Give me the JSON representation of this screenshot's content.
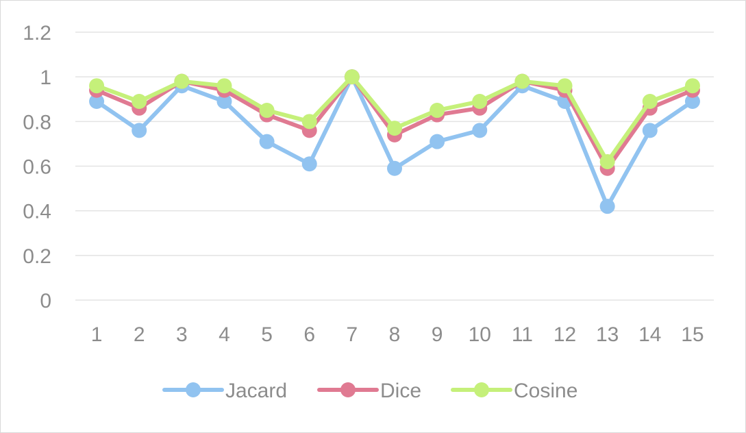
{
  "chart_data": {
    "type": "line",
    "title": "",
    "xlabel": "",
    "ylabel": "",
    "x": [
      "1",
      "2",
      "3",
      "4",
      "5",
      "6",
      "7",
      "8",
      "9",
      "10",
      "11",
      "12",
      "13",
      "14",
      "15"
    ],
    "ylim": [
      0,
      1.2
    ],
    "yticks": [
      "0",
      "0.2",
      "0.4",
      "0.6",
      "0.8",
      "1",
      "1.2"
    ],
    "grid": true,
    "legend_position": "bottom",
    "series": [
      {
        "name": "Jacard",
        "color": "#91c3f0",
        "values": [
          0.89,
          0.76,
          0.96,
          0.89,
          0.71,
          0.61,
          1.0,
          0.59,
          0.71,
          0.76,
          0.96,
          0.89,
          0.42,
          0.76,
          0.89
        ]
      },
      {
        "name": "Dice",
        "color": "#e07a92",
        "values": [
          0.94,
          0.86,
          0.98,
          0.94,
          0.83,
          0.76,
          1.0,
          0.74,
          0.83,
          0.86,
          0.98,
          0.94,
          0.59,
          0.86,
          0.94
        ]
      },
      {
        "name": "Cosine",
        "color": "#c5f07a",
        "values": [
          0.96,
          0.89,
          0.98,
          0.96,
          0.85,
          0.8,
          1.0,
          0.77,
          0.85,
          0.89,
          0.98,
          0.96,
          0.62,
          0.89,
          0.96
        ]
      }
    ]
  }
}
